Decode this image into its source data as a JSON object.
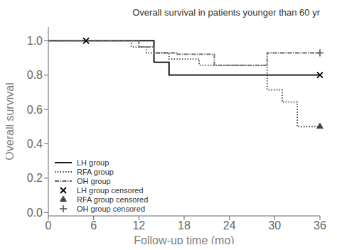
{
  "chart_data": {
    "type": "line",
    "title": "Overall survival in patients younger than 60 yr",
    "xlabel": "Follow-up time (mo)",
    "ylabel": "Overall survival",
    "xlim": [
      0,
      36
    ],
    "ylim": [
      -0.02,
      1.08
    ],
    "xticks": [
      0,
      6,
      12,
      18,
      24,
      30,
      36
    ],
    "yticks": [
      {
        "value": 0,
        "label": "0.0"
      },
      0.2,
      0.4,
      0.6,
      0.8,
      {
        "value": 1,
        "label": "1.0"
      }
    ],
    "legend": "lower left",
    "series": [
      {
        "name": "LH group",
        "type": "step",
        "color": "#000000",
        "line_style": "solid",
        "x": [
          0,
          14,
          14,
          16,
          16,
          18,
          18,
          36
        ],
        "values": [
          1.0,
          1.0,
          0.875,
          0.875,
          0.8,
          0.8,
          0.8,
          0.8
        ]
      },
      {
        "name": "RFA group",
        "type": "step",
        "color": "#444444",
        "line_style": "dotted",
        "x": [
          0,
          11,
          11,
          13,
          13,
          16,
          16,
          20,
          20,
          24,
          24,
          29,
          29,
          31,
          31,
          33,
          33,
          36
        ],
        "values": [
          1.0,
          1.0,
          0.964,
          0.964,
          0.929,
          0.929,
          0.893,
          0.893,
          0.857,
          0.857,
          0.857,
          0.857,
          0.714,
          0.714,
          0.643,
          0.643,
          0.5,
          0.5
        ]
      },
      {
        "name": "OH group",
        "type": "step",
        "color": "#666666",
        "line_style": "dashdot",
        "x": [
          0,
          12,
          12,
          14,
          14,
          17,
          17,
          22,
          22,
          29,
          29,
          36
        ],
        "values": [
          1.0,
          1.0,
          0.964,
          0.964,
          0.929,
          0.929,
          0.921,
          0.921,
          0.857,
          0.857,
          0.929,
          0.929
        ]
      },
      {
        "name": "LH group censored",
        "type": "scatter",
        "color": "#000000",
        "marker": "x",
        "x": [
          5,
          36
        ],
        "values": [
          1.0,
          0.8
        ]
      },
      {
        "name": "RFA group censored",
        "type": "scatter",
        "color": "#444444",
        "marker": "triangle",
        "x": [
          36
        ],
        "values": [
          0.5
        ]
      },
      {
        "name": "OH group censored",
        "type": "scatter",
        "color": "#666666",
        "marker": "plus",
        "x": [
          36
        ],
        "values": [
          0.929
        ]
      }
    ]
  }
}
